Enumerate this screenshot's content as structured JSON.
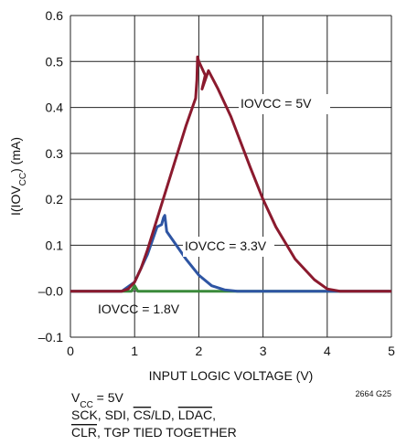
{
  "chart_data": {
    "type": "line",
    "xlabel": "INPUT LOGIC VOLTAGE (V)",
    "ylabel": [
      "I(IOV",
      "CC",
      ") (mA)"
    ],
    "xlim": [
      0,
      5
    ],
    "ylim": [
      -0.1,
      0.6
    ],
    "xticks": [
      0,
      1,
      2,
      3,
      4,
      5
    ],
    "yticks": [
      {
        "value": -0.1,
        "label": "–0.1"
      },
      {
        "value": 0,
        "label": "–0.0"
      },
      0.1,
      0.2,
      0.3,
      0.4,
      0.5,
      0.6
    ],
    "grid": true,
    "series": [
      {
        "name": [
          "IOV",
          "CC",
          " = 5V"
        ],
        "color": "#8b1a2e",
        "x": [
          0,
          0.8,
          0.9,
          1.0,
          1.1,
          1.2,
          1.4,
          1.6,
          1.8,
          1.95,
          1.97,
          1.98,
          2.0,
          2.1,
          2.05,
          2.15,
          2.3,
          2.5,
          2.8,
          3.0,
          3.2,
          3.5,
          3.8,
          4.0,
          4.2,
          4.5,
          5
        ],
        "values": [
          0,
          0,
          0.005,
          0.02,
          0.05,
          0.09,
          0.18,
          0.27,
          0.36,
          0.42,
          0.46,
          0.51,
          0.5,
          0.47,
          0.44,
          0.48,
          0.44,
          0.38,
          0.27,
          0.2,
          0.14,
          0.07,
          0.025,
          0.005,
          0,
          0,
          0
        ]
      },
      {
        "name": [
          "IOV",
          "CC",
          " = 3.3V"
        ],
        "color": "#2e55a3",
        "x": [
          0,
          0.8,
          1.0,
          1.2,
          1.35,
          1.42,
          1.45,
          1.47,
          1.5,
          1.6,
          1.8,
          2.0,
          2.2,
          2.4,
          2.6,
          3,
          5
        ],
        "values": [
          0,
          0,
          0.02,
          0.08,
          0.14,
          0.145,
          0.16,
          0.165,
          0.13,
          0.11,
          0.07,
          0.035,
          0.012,
          0.003,
          0,
          0,
          0
        ]
      },
      {
        "name": [
          "IOV",
          "CC",
          " = 1.8V"
        ],
        "color": "#3a8a3a",
        "x": [
          0,
          0.95,
          1.0,
          1.05,
          5
        ],
        "values": [
          0,
          0,
          0.012,
          0,
          0
        ]
      }
    ],
    "notes": {
      "vcc": [
        "V",
        "CC",
        " = 5V"
      ],
      "line1": [
        "SCK, SDI, ",
        "CS",
        "/LD, ",
        "LDAC",
        ","
      ],
      "line2": [
        "CLR",
        ", TGP TIED TOGETHER"
      ],
      "code": "2664 G25"
    }
  }
}
